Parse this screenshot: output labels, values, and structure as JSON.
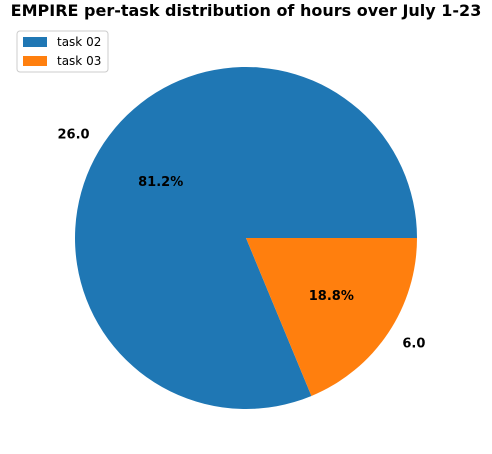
{
  "chart_data": {
    "type": "pie",
    "title": "EMPIRE per-task distribution of hours over July 1-23",
    "slices": [
      {
        "name": "task 02",
        "value": 26.0,
        "value_label": "26.0",
        "pct_label": "81.2%",
        "color": "#1f77b4"
      },
      {
        "name": "task 03",
        "value": 6.0,
        "value_label": "6.0",
        "pct_label": "18.8%",
        "color": "#ff7f0e"
      }
    ],
    "legend_position": "top-left",
    "start_angle_deg": 0,
    "direction": "counterclockwise"
  }
}
